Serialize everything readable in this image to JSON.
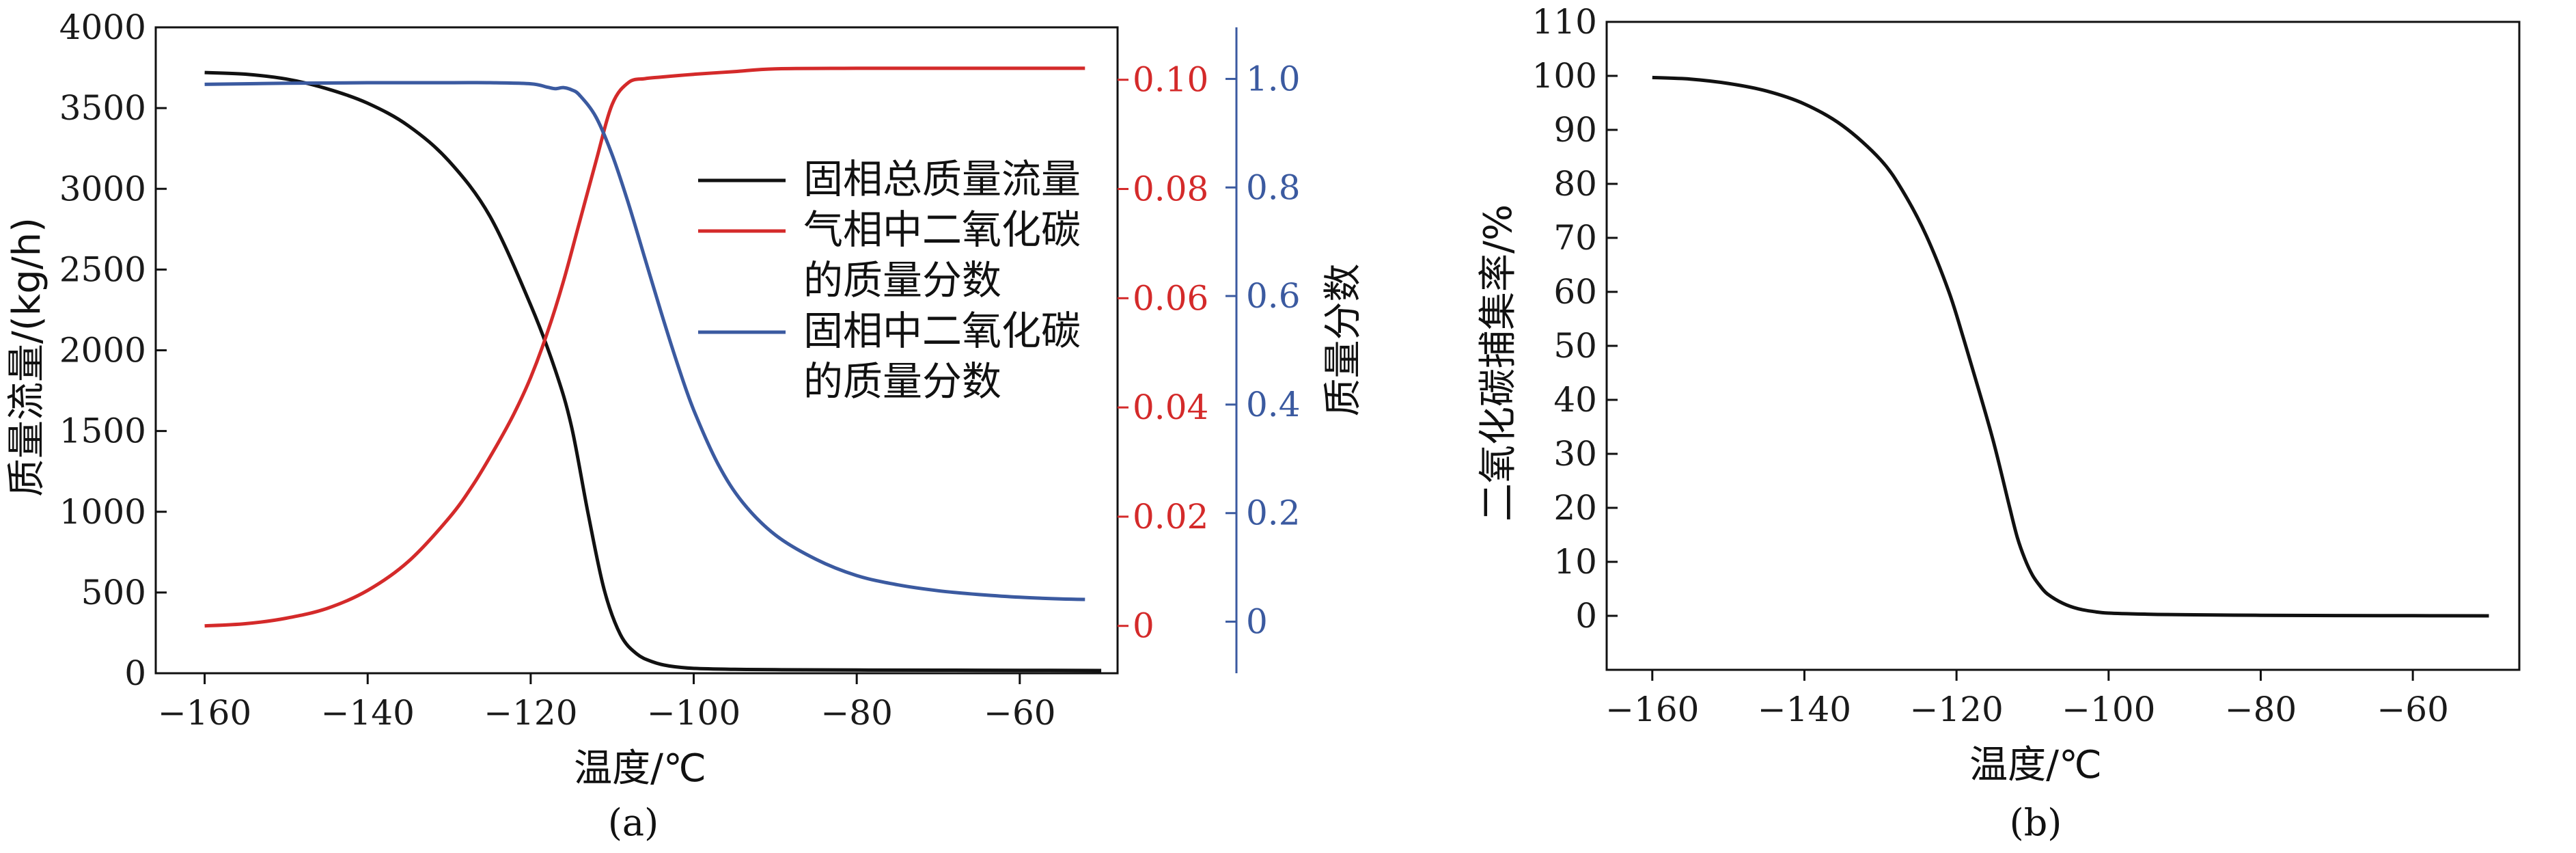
{
  "colors": {
    "solid_total": "#111111",
    "gas_co2": "#d42a2a",
    "solid_co2": "#3b5aa0",
    "axis": "#111111"
  },
  "chart_data": [
    {
      "id": "a",
      "type": "line",
      "caption": "(a)",
      "xlabel": "温度/℃",
      "ylabel_left": "质量流量/(kg/h)",
      "ylabel_right": "质量分数",
      "xlim": [
        -166,
        -48
      ],
      "xticks": [
        -160,
        -140,
        -120,
        -100,
        -80,
        -60
      ],
      "y_left": {
        "lim": [
          0,
          4000
        ],
        "ticks": [
          0,
          500,
          1000,
          1500,
          2000,
          2500,
          3000,
          3500,
          4000
        ]
      },
      "y_red": {
        "lim": [
          -0.00867,
          0.1096
        ],
        "ticks": [
          0,
          0.02,
          0.04,
          0.06,
          0.08,
          0.1
        ],
        "tick_labels": [
          "0",
          "0.02",
          "0.04",
          "0.06",
          "0.08",
          "0.10"
        ]
      },
      "y_blue": {
        "lim": [
          -0.095,
          1.095
        ],
        "ticks": [
          0,
          0.2,
          0.4,
          0.6,
          0.8,
          1.0
        ],
        "tick_labels": [
          "0",
          "0.2",
          "0.4",
          "0.6",
          "0.8",
          "1.0"
        ]
      },
      "legend_position": "upper-right",
      "legend": [
        {
          "lines": [
            "固相总质量流量"
          ],
          "color": "#111111"
        },
        {
          "lines": [
            "气相中二氧化碳",
            "的质量分数"
          ],
          "color": "#d42a2a"
        },
        {
          "lines": [
            "固相中二氧化碳",
            "的质量分数"
          ],
          "color": "#3b5aa0"
        }
      ],
      "series": [
        {
          "axis": "left",
          "color": "#111111",
          "x": [
            -160,
            -155,
            -150,
            -145,
            -140,
            -135,
            -130,
            -125,
            -120,
            -117,
            -115,
            -113,
            -111,
            -109,
            -107,
            -105,
            -103,
            -100,
            -95,
            -90,
            -80,
            -70,
            -60,
            -50
          ],
          "y": [
            3720,
            3710,
            3680,
            3620,
            3530,
            3390,
            3170,
            2830,
            2280,
            1880,
            1530,
            1000,
            520,
            240,
            120,
            70,
            45,
            30,
            24,
            22,
            20,
            19,
            18,
            17
          ]
        },
        {
          "axis": "red",
          "color": "#d42a2a",
          "x": [
            -160,
            -155,
            -150,
            -145,
            -140,
            -135,
            -130,
            -127,
            -124,
            -122,
            -120,
            -118,
            -116,
            -114,
            -112,
            -110,
            -108,
            -106,
            -104,
            -100,
            -95,
            -90,
            -80,
            -70,
            -60,
            -52
          ],
          "y": [
            0.0,
            0.0004,
            0.0014,
            0.0032,
            0.0065,
            0.0118,
            0.0198,
            0.026,
            0.0335,
            0.039,
            0.0455,
            0.0535,
            0.063,
            0.074,
            0.085,
            0.0955,
            0.0995,
            0.1002,
            0.1005,
            0.101,
            0.1015,
            0.102,
            0.1021,
            0.1021,
            0.1021,
            0.1021
          ]
        },
        {
          "axis": "blue",
          "color": "#3b5aa0",
          "x": [
            -160,
            -150,
            -140,
            -130,
            -125,
            -120,
            -118,
            -117,
            -116,
            -115,
            -114,
            -112,
            -110,
            -108,
            -106,
            -104,
            -102,
            -100,
            -97,
            -94,
            -90,
            -85,
            -80,
            -75,
            -70,
            -65,
            -60,
            -55,
            -52
          ],
          "y": [
            0.99,
            0.992,
            0.993,
            0.993,
            0.993,
            0.991,
            0.985,
            0.982,
            0.984,
            0.98,
            0.97,
            0.93,
            0.86,
            0.77,
            0.67,
            0.57,
            0.475,
            0.39,
            0.29,
            0.22,
            0.16,
            0.115,
            0.085,
            0.068,
            0.057,
            0.05,
            0.045,
            0.042,
            0.041
          ]
        }
      ]
    },
    {
      "id": "b",
      "type": "line",
      "caption": "(b)",
      "xlabel": "温度/℃",
      "ylabel": "二氧化碳捕集率/%",
      "xlim": [
        -166,
        -46
      ],
      "xticks": [
        -160,
        -140,
        -120,
        -100,
        -80,
        -60
      ],
      "ylim": [
        -10,
        110
      ],
      "yticks": [
        0,
        10,
        20,
        30,
        40,
        50,
        60,
        70,
        80,
        90,
        100,
        110
      ],
      "series": [
        {
          "color": "#111111",
          "x": [
            -160,
            -155,
            -150,
            -145,
            -140,
            -135,
            -130,
            -127,
            -124,
            -121,
            -119,
            -117,
            -115,
            -113,
            -112,
            -111,
            -110,
            -109,
            -108,
            -106,
            -104,
            -102,
            -100,
            -95,
            -90,
            -80,
            -70,
            -60,
            -50
          ],
          "y": [
            99.7,
            99.4,
            98.6,
            97.2,
            94.8,
            90.8,
            84.5,
            78.5,
            70.5,
            60.0,
            51.0,
            41.5,
            31.5,
            20.0,
            14.5,
            10.5,
            7.5,
            5.5,
            4.0,
            2.3,
            1.3,
            0.8,
            0.5,
            0.3,
            0.2,
            0.1,
            0.05,
            0.02,
            0.0
          ]
        }
      ]
    }
  ]
}
